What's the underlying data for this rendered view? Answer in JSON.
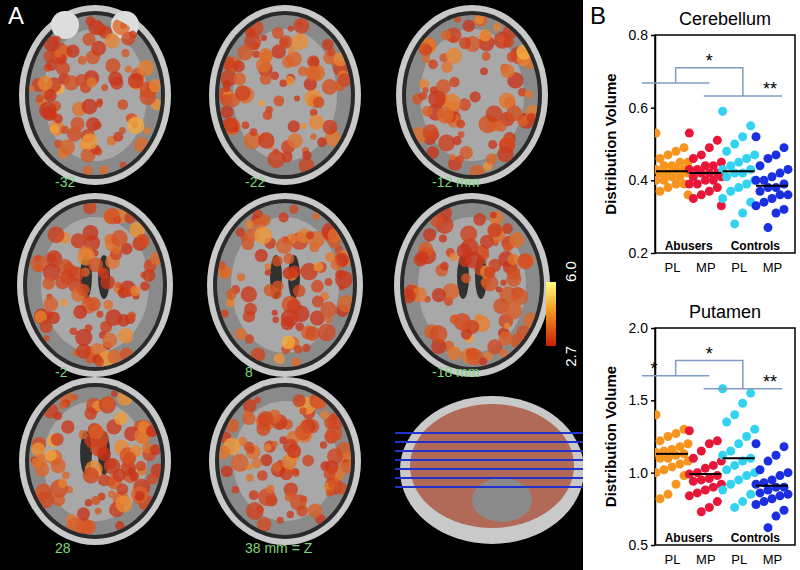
{
  "chart_data": [
    {
      "type": "brain_slices",
      "title": "A",
      "slice_labels": [
        "-32",
        "-22",
        "-12 mm",
        "-2",
        "8",
        "-18 mm",
        "28",
        "38 mm = Z"
      ],
      "colorbar": {
        "range": [
          2.7,
          6.0
        ],
        "ticks": [
          2.7,
          {
            "value": 6,
            "label": "6.0"
          }
        ]
      }
    },
    {
      "type": "strip",
      "panel_label": "B",
      "title": "Cerebellum",
      "y_label": "Distribution Volume",
      "categories": [
        "PL",
        "MP",
        "PL",
        "MP"
      ],
      "group_labels": [
        "Abusers",
        "Controls"
      ],
      "colors": [
        "#f7941d",
        "#e8173a",
        "#33d3f0",
        "#1c2fe0"
      ],
      "ylim": [
        0.2,
        0.8
      ],
      "yticks": [
        0.2,
        0.4,
        0.6,
        0.8
      ],
      "values": [
        [
          0.53,
          0.49,
          0.48,
          0.47,
          0.46,
          0.45,
          0.45,
          0.44,
          0.44,
          0.43,
          0.43,
          0.43,
          0.42,
          0.42,
          0.42,
          0.41,
          0.41,
          0.4,
          0.4,
          0.39,
          0.39,
          0.38,
          0.37,
          0.36
        ],
        [
          0.53,
          0.51,
          0.49,
          0.47,
          0.46,
          0.45,
          0.44,
          0.44,
          0.43,
          0.43,
          0.42,
          0.42,
          0.42,
          0.41,
          0.41,
          0.4,
          0.4,
          0.39,
          0.39,
          0.38,
          0.37,
          0.36,
          0.35,
          0.33
        ],
        [
          0.59,
          0.55,
          0.52,
          0.5,
          0.48,
          0.47,
          0.46,
          0.45,
          0.44,
          0.43,
          0.43,
          0.42,
          0.42,
          0.41,
          0.4,
          0.39,
          0.38,
          0.37,
          0.35,
          0.34,
          0.31,
          0.28
        ],
        [
          0.52,
          0.49,
          0.47,
          0.46,
          0.44,
          0.43,
          0.42,
          0.41,
          0.4,
          0.4,
          0.39,
          0.38,
          0.38,
          0.37,
          0.36,
          0.36,
          0.35,
          0.34,
          0.33,
          0.32,
          0.31,
          0.27
        ]
      ],
      "means": [
        0.425,
        0.42,
        0.425,
        0.385
      ],
      "significance": {
        "within_groups": [
          null,
          "**"
        ],
        "between_groups": "*"
      }
    },
    {
      "type": "strip",
      "title": "Putamen",
      "y_label": "Distribution Volume",
      "categories": [
        "PL",
        "MP",
        "PL",
        "MP"
      ],
      "group_labels": [
        "Abusers",
        "Controls"
      ],
      "colors": [
        "#f7941d",
        "#e8173a",
        "#33d3f0",
        "#1c2fe0"
      ],
      "ylim": [
        0.5,
        2.0
      ],
      "yticks": [
        0.5,
        {
          "value": 1,
          "label": "1.0"
        },
        1.5,
        {
          "value": 2,
          "label": "2.0"
        }
      ],
      "values": [
        [
          1.4,
          1.3,
          1.27,
          1.25,
          1.22,
          1.2,
          1.18,
          1.16,
          1.15,
          1.14,
          1.13,
          1.12,
          1.1,
          1.1,
          1.08,
          1.06,
          1.04,
          1.02,
          1.0,
          0.98,
          0.92,
          0.85,
          0.82
        ],
        [
          1.29,
          1.22,
          1.2,
          1.15,
          1.1,
          1.08,
          1.05,
          1.03,
          1.0,
          0.99,
          0.98,
          0.96,
          0.95,
          0.94,
          0.92,
          0.9,
          0.88,
          0.86,
          0.84,
          0.8,
          0.76,
          0.73
        ],
        [
          1.58,
          1.55,
          1.48,
          1.4,
          1.35,
          1.3,
          1.25,
          1.2,
          1.15,
          1.12,
          1.1,
          1.08,
          1.05,
          1.02,
          1.0,
          0.98,
          0.95,
          0.92,
          0.88,
          0.85,
          0.8,
          0.76
        ],
        [
          1.2,
          1.18,
          1.12,
          1.08,
          1.02,
          1.0,
          0.98,
          0.95,
          0.93,
          0.92,
          0.9,
          0.9,
          0.88,
          0.86,
          0.85,
          0.84,
          0.82,
          0.8,
          0.78,
          0.74,
          0.7,
          0.62
        ]
      ],
      "means": [
        1.13,
        0.99,
        1.1,
        0.91
      ],
      "significance": {
        "within_groups": [
          "*",
          "**"
        ],
        "between_groups": "*"
      }
    }
  ]
}
